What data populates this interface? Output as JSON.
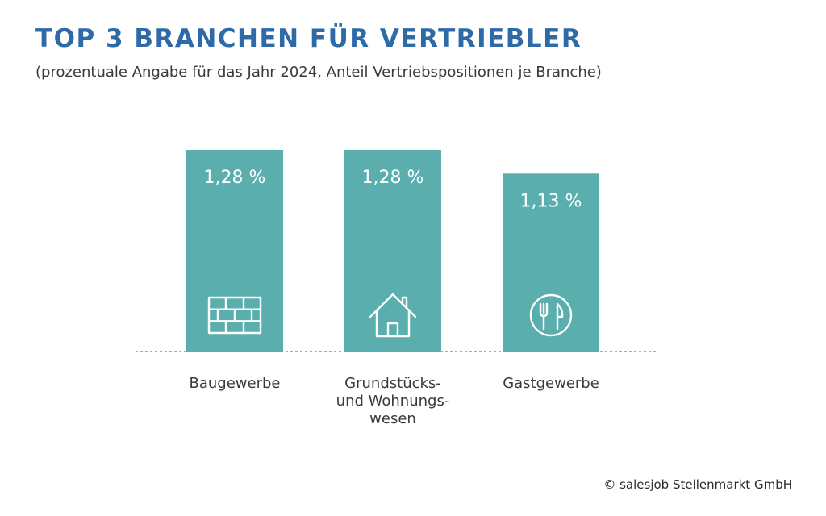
{
  "title": "TOP 3 BRANCHEN FÜR VERTRIEBLER",
  "subtitle": "(prozentuale Angabe für das Jahr 2024, Anteil Vertriebspositionen je Branche)",
  "footer": "© salesjob Stellenmarkt GmbH",
  "colors": {
    "title": "#2e6aa8",
    "bar": "#5aafae",
    "baseline": "#555555"
  },
  "chart_data": {
    "type": "bar",
    "categories": [
      [
        "Baugewerbe"
      ],
      [
        "Grundstücks-",
        "und Wohnungs-",
        "wesen"
      ],
      [
        "Gastgewerbe"
      ]
    ],
    "values": [
      1.28,
      1.28,
      1.13
    ],
    "value_labels": [
      "1,28 %",
      "1,28 %",
      "1,13 %"
    ],
    "icons": [
      "brick-wall-icon",
      "house-icon",
      "fork-knife-plate-icon"
    ],
    "unit": "%",
    "ylim": [
      0,
      1.28
    ],
    "grid": false,
    "legend": "none"
  }
}
